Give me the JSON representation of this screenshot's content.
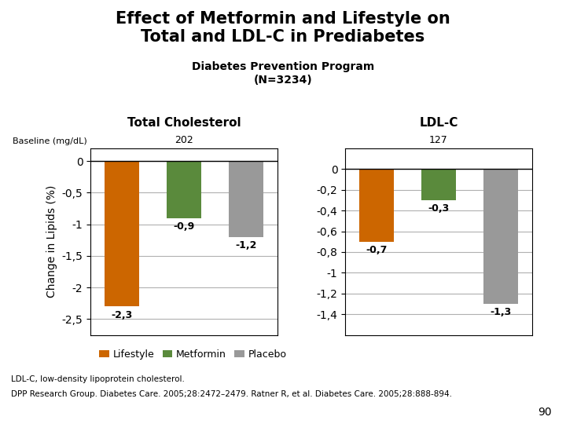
{
  "title": "Effect of Metformin and Lifestyle on\nTotal and LDL-C in Prediabetes",
  "subtitle": "Diabetes Prevention Program\n(N=3234)",
  "notes": [
    "LDL-C, low-density lipoprotein cholesterol.",
    "DPP Research Group. Diabetes Care. 2005;28:2472–2479. Ratner R, et al. Diabetes Care. 2005;28:888-894."
  ],
  "page_number": "90",
  "chart_data": [
    {
      "type": "bar",
      "title": "Total Cholesterol",
      "categories": [
        "Lifestyle",
        "Metformin",
        "Placebo"
      ],
      "values": [
        -2.3,
        -0.9,
        -1.2
      ],
      "value_labels": [
        "-2,3",
        "-0,9",
        "-1,2"
      ],
      "data_labels": true,
      "colors": [
        "#cc6600",
        "#5a8a3c",
        "#999999"
      ],
      "ylabel": "Change in Lipids (%)",
      "ylim": [
        -2.75,
        0.2
      ],
      "yticks": [
        0,
        {
          "value": -0.5,
          "label": "-0,5"
        },
        -1,
        {
          "value": -1.5,
          "label": "-1,5"
        },
        -2,
        {
          "value": -2.5,
          "label": "-2,5"
        }
      ],
      "grid": true,
      "tick_labels": "y",
      "legend": "upper left",
      "baseline_label": "Baseline (mg/dL)",
      "baseline": "202"
    },
    {
      "type": "bar",
      "title": "LDL-C",
      "categories": [
        "Lifestyle",
        "Metformin",
        "Placebo"
      ],
      "values": [
        -0.7,
        -0.3,
        -1.3
      ],
      "value_labels": [
        "-0,7",
        "-0,3",
        "-1,3"
      ],
      "data_labels": true,
      "colors": [
        "#cc6600",
        "#5a8a3c",
        "#999999"
      ],
      "ylim": [
        -1.6,
        0.2
      ],
      "yticks": [
        0,
        {
          "value": -0.2,
          "label": "-0,2"
        },
        {
          "value": -0.4,
          "label": "-0,4"
        },
        {
          "value": -0.6,
          "label": "-0,6"
        },
        {
          "value": -0.8,
          "label": "-0,8"
        },
        -1,
        {
          "value": -1.2,
          "label": "-1,2"
        },
        {
          "value": -1.4,
          "label": "-1,4"
        }
      ],
      "grid": true,
      "tick_labels": "y",
      "baseline": "127"
    }
  ]
}
